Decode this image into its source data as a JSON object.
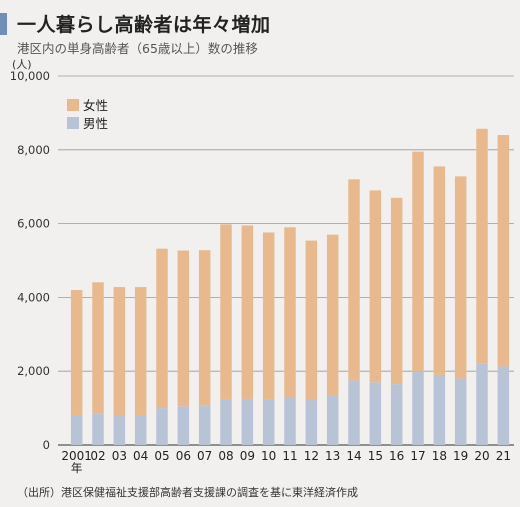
{
  "header": {
    "title": "一人暮らし高齢者は年々増加",
    "subtitle": "港区内の単身高齢者（65歳以上）数の推移"
  },
  "footer": {
    "source": "（出所）港区保健福祉支援部高齢者支援課の調査を基に東洋経済作成"
  },
  "colors": {
    "female": "#e8b98f",
    "male": "#b9c3d6",
    "gridline": "#9a9a9a",
    "accent_bar": "#6f8fb4"
  },
  "chart_data": {
    "type": "bar",
    "stacked": true,
    "unit_label": "(人)",
    "categories": [
      "2001",
      "02",
      "03",
      "04",
      "05",
      "06",
      "07",
      "08",
      "09",
      "10",
      "11",
      "12",
      "13",
      "14",
      "15",
      "16",
      "17",
      "18",
      "19",
      "20",
      "21"
    ],
    "first_category_suffix": "年",
    "series": [
      {
        "name": "男性",
        "values": [
          800,
          850,
          800,
          800,
          1000,
          1050,
          1080,
          1250,
          1250,
          1230,
          1300,
          1220,
          1330,
          1750,
          1700,
          1650,
          2000,
          1900,
          1800,
          2200,
          2130
        ]
      },
      {
        "name": "女性",
        "values": [
          3400,
          3560,
          3480,
          3480,
          4320,
          4220,
          4200,
          4730,
          4700,
          4530,
          4600,
          4320,
          4370,
          5450,
          5200,
          5050,
          5950,
          5650,
          5480,
          6370,
          6270
        ]
      }
    ],
    "totals": [
      4200,
      4410,
      4280,
      4280,
      5320,
      5270,
      5280,
      5980,
      5950,
      5760,
      5900,
      5540,
      5700,
      7200,
      6900,
      6700,
      7950,
      7550,
      7280,
      8570,
      8400
    ],
    "ylim": [
      0,
      10000
    ],
    "yticks": [
      0,
      2000,
      4000,
      6000,
      8000,
      10000
    ],
    "ytick_labels": [
      "0",
      "2,000",
      "4,000",
      "6,000",
      "8,000",
      "10,000"
    ],
    "grid": true,
    "legend_position": "top-left",
    "legend": [
      {
        "name": "女性",
        "color": "#e8b98f"
      },
      {
        "name": "男性",
        "color": "#b9c3d6"
      }
    ]
  }
}
